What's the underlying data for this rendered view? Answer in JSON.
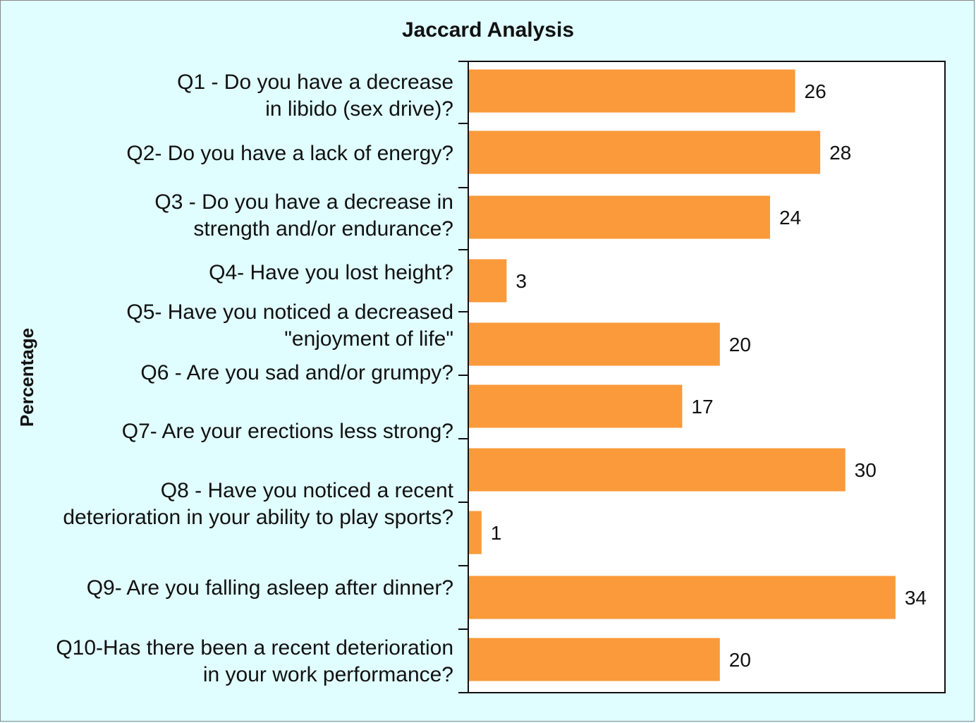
{
  "chart_data": {
    "type": "bar",
    "orientation": "horizontal",
    "title": "Jaccard Analysis",
    "ylabel": "Percentage",
    "xlabel": "",
    "xlim": [
      0,
      38
    ],
    "categories": [
      [
        "Q1 - Do you have a decrease",
        "in libido (sex drive)?"
      ],
      [
        "Q2- Do you have a lack of energy?"
      ],
      [
        "Q3 - Do you have a decrease in",
        "strength and/or endurance?"
      ],
      [
        "Q4- Have you lost height?"
      ],
      [
        "Q5- Have you noticed a decreased",
        "\"enjoyment of life\""
      ],
      [
        "Q6 - Are you sad and/or grumpy?"
      ],
      [
        "Q7- Are your erections less strong?"
      ],
      [
        "Q8 - Have you noticed a recent",
        "deterioration in your ability to play sports?"
      ],
      [
        "Q9- Are you falling asleep after dinner?"
      ],
      [
        "Q10-Has there been a recent deterioration",
        "in your work performance?"
      ]
    ],
    "values": [
      26,
      28,
      24,
      3,
      20,
      17,
      30,
      1,
      34,
      20
    ],
    "value_labels": [
      "26",
      "28",
      "24",
      "3",
      "20",
      "17",
      "30",
      "1",
      "34",
      "20"
    ],
    "bar_color": "#fa9a3a",
    "background_color": "#e0fdff",
    "plot_background_color": "#ffffff"
  }
}
